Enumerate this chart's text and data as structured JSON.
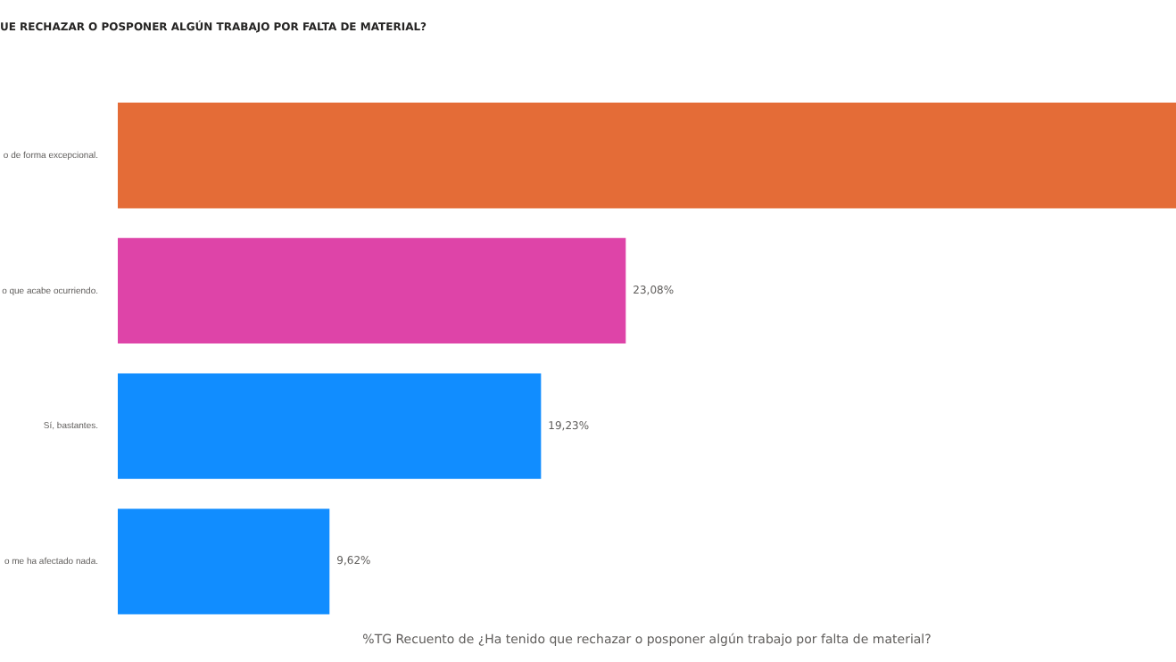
{
  "chart_data": {
    "type": "bar",
    "orientation": "horizontal",
    "title": "UE RECHAZAR O POSPONER ALGÚN TRABAJO POR FALTA DE MATERIAL?",
    "xlabel": "%TG Recuento de ¿Ha tenido que rechazar o posponer algún trabajo por falta de material?",
    "categories": [
      "o de forma excepcional.",
      "o que acabe ocurriendo.",
      "Sí, bastantes.",
      "o me ha afectado nada."
    ],
    "values": [
      48.08,
      23.08,
      19.23,
      9.62
    ],
    "colors": [
      "#e46c37",
      "#de44a8",
      "#118dff",
      "#118dff"
    ],
    "value_labels": [
      null,
      "23,08%",
      "19,23%",
      "9,62%"
    ],
    "grid": false,
    "legend": false
  }
}
